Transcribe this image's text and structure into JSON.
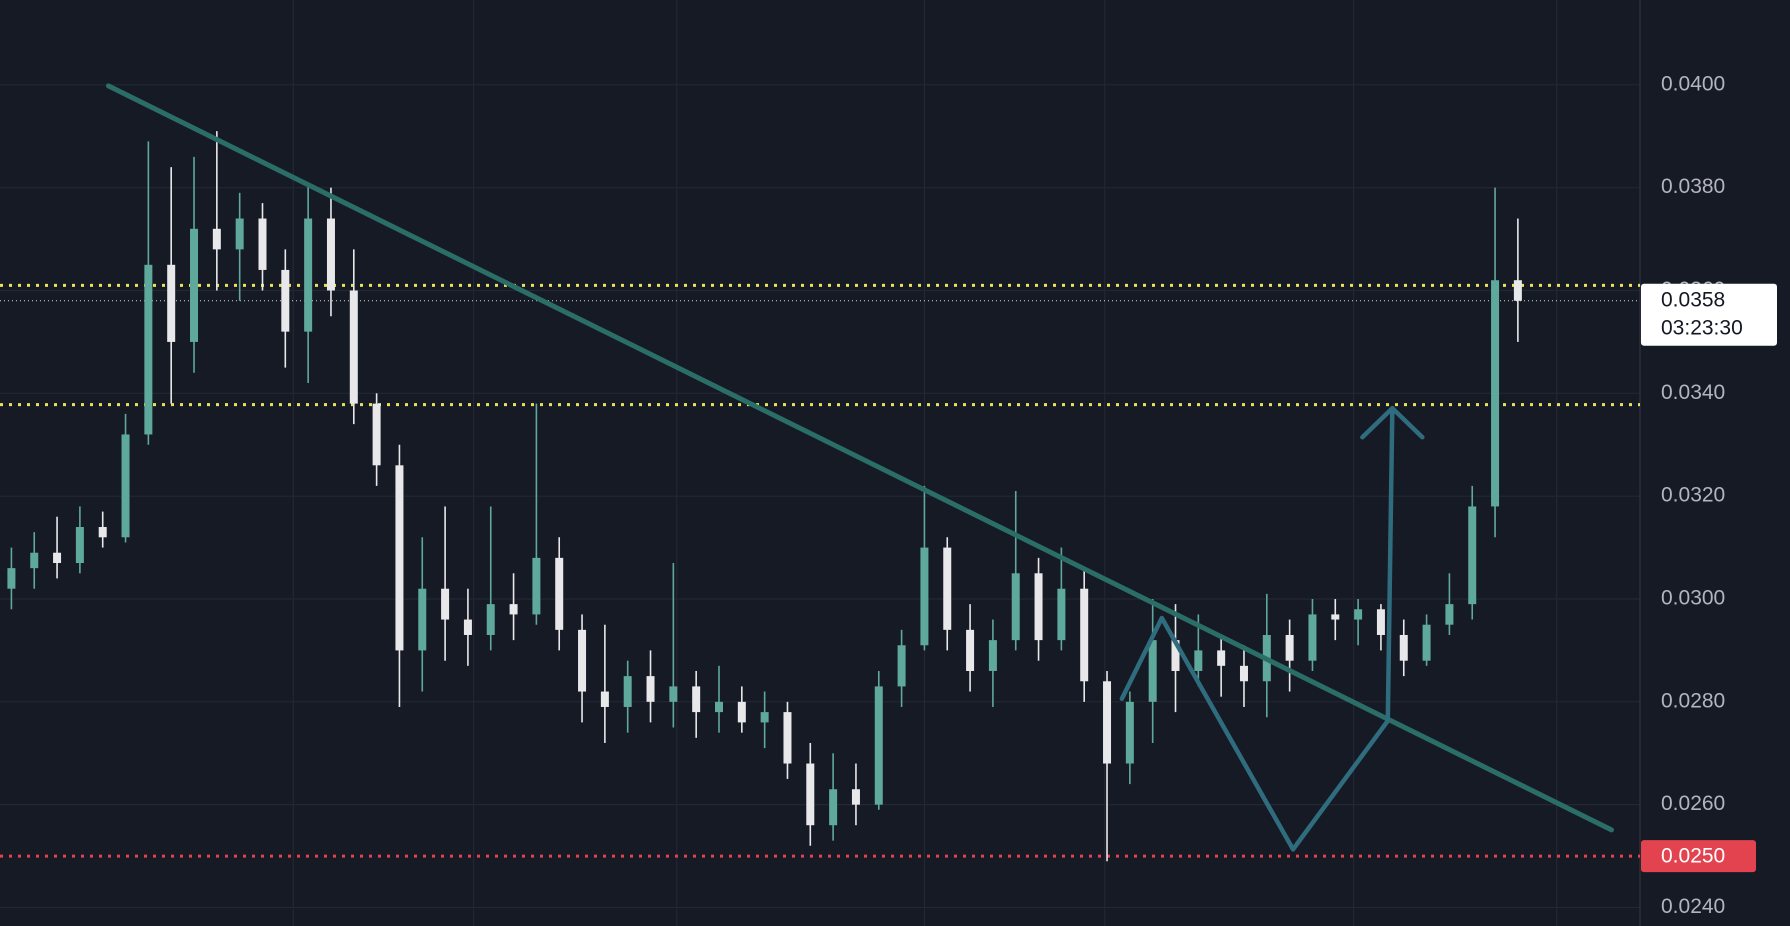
{
  "chart_data": {
    "type": "candlestick",
    "up_color": "#5fa89c",
    "down_color": "#e8e8ea",
    "grid": true,
    "xlim": [
      -0.5,
      71.35
    ],
    "ylim": [
      0.04165,
      0.02364
    ],
    "yticks": [
      {
        "value": 0.04,
        "label": "0.0400"
      },
      {
        "value": 0.038,
        "label": "0.0380"
      },
      {
        "value": 0.036,
        "label": "0.0360"
      },
      {
        "value": 0.034,
        "label": "0.0340"
      },
      {
        "value": 0.032,
        "label": "0.0320"
      },
      {
        "value": 0.03,
        "label": "0.0300"
      },
      {
        "value": 0.028,
        "label": "0.0280"
      },
      {
        "value": 0.026,
        "label": "0.0260"
      },
      {
        "value": 0.024,
        "label": "0.0240"
      }
    ],
    "xgrid": [
      12.35,
      20.25,
      29.15,
      40,
      47.9,
      58.8,
      67.7
    ],
    "candles": [
      [
        0.0302,
        0.031,
        0.0298,
        0.0306
      ],
      [
        0.0306,
        0.0313,
        0.0302,
        0.0309
      ],
      [
        0.0309,
        0.0316,
        0.0304,
        0.0307
      ],
      [
        0.0307,
        0.0318,
        0.0305,
        0.0314
      ],
      [
        0.0314,
        0.0317,
        0.031,
        0.0312
      ],
      [
        0.0312,
        0.0336,
        0.0311,
        0.0332
      ],
      [
        0.0332,
        0.0389,
        0.033,
        0.0365
      ],
      [
        0.0365,
        0.0384,
        0.0338,
        0.035
      ],
      [
        0.035,
        0.0386,
        0.0344,
        0.0372
      ],
      [
        0.0372,
        0.0391,
        0.036,
        0.0368
      ],
      [
        0.0368,
        0.0379,
        0.0358,
        0.0374
      ],
      [
        0.0374,
        0.0377,
        0.036,
        0.0364
      ],
      [
        0.0364,
        0.0368,
        0.0345,
        0.0352
      ],
      [
        0.0352,
        0.0381,
        0.0342,
        0.0374
      ],
      [
        0.0374,
        0.038,
        0.0355,
        0.036
      ],
      [
        0.036,
        0.0368,
        0.0334,
        0.0338
      ],
      [
        0.0338,
        0.034,
        0.0322,
        0.0326
      ],
      [
        0.0326,
        0.033,
        0.0279,
        0.029
      ],
      [
        0.029,
        0.0312,
        0.0282,
        0.0302
      ],
      [
        0.0302,
        0.0318,
        0.0288,
        0.0296
      ],
      [
        0.0296,
        0.0302,
        0.0287,
        0.0293
      ],
      [
        0.0293,
        0.0318,
        0.029,
        0.0299
      ],
      [
        0.0299,
        0.0305,
        0.0292,
        0.0297
      ],
      [
        0.0297,
        0.0338,
        0.0295,
        0.0308
      ],
      [
        0.0308,
        0.0312,
        0.029,
        0.0294
      ],
      [
        0.0294,
        0.0297,
        0.0276,
        0.0282
      ],
      [
        0.0282,
        0.0295,
        0.0272,
        0.0279
      ],
      [
        0.0279,
        0.0288,
        0.0274,
        0.0285
      ],
      [
        0.0285,
        0.029,
        0.0276,
        0.028
      ],
      [
        0.028,
        0.0307,
        0.0275,
        0.0283
      ],
      [
        0.0283,
        0.0286,
        0.0273,
        0.0278
      ],
      [
        0.0278,
        0.0287,
        0.0274,
        0.028
      ],
      [
        0.028,
        0.0283,
        0.0274,
        0.0276
      ],
      [
        0.0276,
        0.0282,
        0.0271,
        0.0278
      ],
      [
        0.0278,
        0.028,
        0.0265,
        0.0268
      ],
      [
        0.0268,
        0.0272,
        0.0252,
        0.0256
      ],
      [
        0.0256,
        0.027,
        0.0253,
        0.0263
      ],
      [
        0.0263,
        0.0268,
        0.0256,
        0.026
      ],
      [
        0.026,
        0.0286,
        0.0259,
        0.0283
      ],
      [
        0.0283,
        0.0294,
        0.0279,
        0.0291
      ],
      [
        0.0291,
        0.0322,
        0.029,
        0.031
      ],
      [
        0.031,
        0.0312,
        0.029,
        0.0294
      ],
      [
        0.0294,
        0.0299,
        0.0282,
        0.0286
      ],
      [
        0.0286,
        0.0296,
        0.0279,
        0.0292
      ],
      [
        0.0292,
        0.0321,
        0.029,
        0.0305
      ],
      [
        0.0305,
        0.0308,
        0.0288,
        0.0292
      ],
      [
        0.0292,
        0.031,
        0.029,
        0.0302
      ],
      [
        0.0302,
        0.0306,
        0.028,
        0.0284
      ],
      [
        0.0284,
        0.0286,
        0.0249,
        0.0268
      ],
      [
        0.0268,
        0.0282,
        0.0264,
        0.028
      ],
      [
        0.028,
        0.03,
        0.0272,
        0.0292
      ],
      [
        0.0292,
        0.0299,
        0.0278,
        0.0286
      ],
      [
        0.0286,
        0.0297,
        0.0283,
        0.029
      ],
      [
        0.029,
        0.0293,
        0.0281,
        0.0287
      ],
      [
        0.0287,
        0.0291,
        0.0279,
        0.0284
      ],
      [
        0.0284,
        0.0301,
        0.0277,
        0.0293
      ],
      [
        0.0293,
        0.0296,
        0.0282,
        0.0288
      ],
      [
        0.0288,
        0.03,
        0.0286,
        0.0297
      ],
      [
        0.0297,
        0.03,
        0.0292,
        0.0296
      ],
      [
        0.0296,
        0.03,
        0.0291,
        0.0298
      ],
      [
        0.0298,
        0.0299,
        0.029,
        0.0293
      ],
      [
        0.0293,
        0.0296,
        0.0285,
        0.0288
      ],
      [
        0.0288,
        0.0297,
        0.0287,
        0.0295
      ],
      [
        0.0295,
        0.0305,
        0.0293,
        0.0299
      ],
      [
        0.0299,
        0.0322,
        0.0296,
        0.0318
      ],
      [
        0.0318,
        0.038,
        0.0312,
        0.0362
      ],
      [
        0.0362,
        0.0374,
        0.035,
        0.0358
      ]
    ],
    "levels": [
      {
        "value": 0.0361,
        "color": "#e8e35a"
      },
      {
        "value": 0.03378,
        "color": "#e8e35a"
      }
    ],
    "trendline": {
      "x": [
        4.25,
        70.1
      ],
      "y": [
        0.03998,
        0.02551
      ],
      "color": "#2b6e68"
    },
    "pattern": {
      "x": [
        48.65,
        50.4,
        56.15,
        60.3,
        60.5
      ],
      "y": [
        0.02806,
        0.02963,
        0.02513,
        0.02763,
        0.03371
      ],
      "color": "#2f6c7d"
    },
    "current_price": {
      "value": 0.0358,
      "label": "0.0358"
    },
    "countdown": "03:23:30",
    "alert_level": {
      "value": 0.025,
      "label": "0.0250",
      "color": "#e2434f"
    }
  }
}
